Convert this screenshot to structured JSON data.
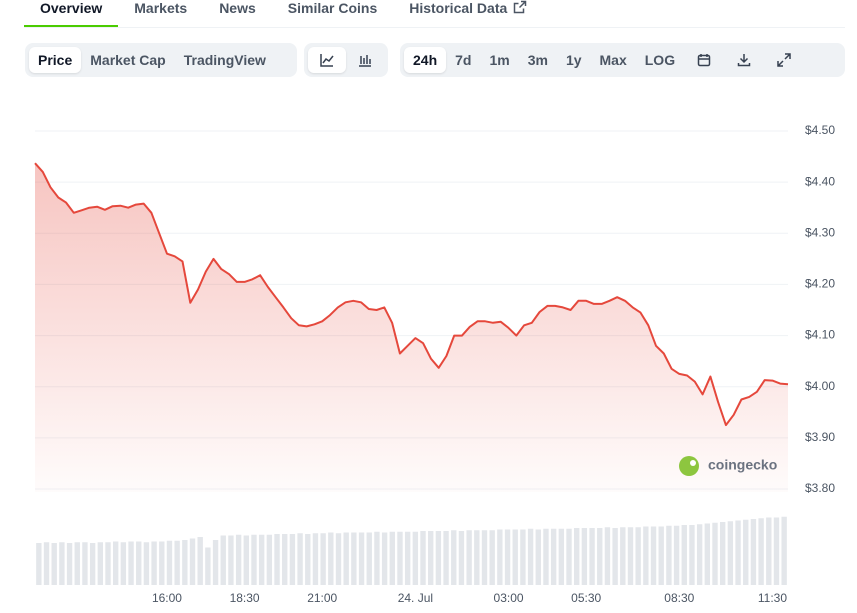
{
  "tabs": [
    "Overview",
    "Markets",
    "News",
    "Similar Coins",
    "Historical Data"
  ],
  "chart_views": [
    "Price",
    "Market Cap",
    "TradingView"
  ],
  "ranges": [
    "24h",
    "7d",
    "1m",
    "3m",
    "1y",
    "Max",
    "LOG"
  ],
  "watermark": "coingecko",
  "chart_data": [
    {
      "type": "line",
      "color": "#e5483c",
      "categories": [
        null,
        null,
        null,
        null,
        null,
        null,
        null,
        null,
        null,
        null,
        null,
        null,
        null,
        null,
        null,
        null,
        null,
        "16:00",
        null,
        null,
        null,
        null,
        null,
        null,
        null,
        null,
        null,
        "18:30",
        null,
        null,
        null,
        null,
        null,
        null,
        null,
        null,
        null,
        "21:00",
        null,
        null,
        null,
        null,
        null,
        null,
        null,
        null,
        null,
        null,
        null,
        "24. Jul",
        null,
        null,
        null,
        null,
        null,
        null,
        null,
        null,
        null,
        null,
        null,
        "03:00",
        null,
        null,
        null,
        null,
        null,
        null,
        null,
        null,
        null,
        "05:30",
        null,
        null,
        null,
        null,
        null,
        null,
        null,
        null,
        null,
        null,
        null,
        "08:30",
        null,
        null,
        null,
        null,
        null,
        null,
        null,
        null,
        null,
        null,
        null,
        "11:30",
        null,
        null
      ],
      "values": [
        4.437,
        4.42,
        4.39,
        4.37,
        4.36,
        4.34,
        4.345,
        4.35,
        4.352,
        4.346,
        4.353,
        4.354,
        4.35,
        4.356,
        4.358,
        4.34,
        4.3,
        4.26,
        4.255,
        4.245,
        4.164,
        4.19,
        4.225,
        4.25,
        4.23,
        4.22,
        4.205,
        4.205,
        4.21,
        4.218,
        4.195,
        4.175,
        4.155,
        4.134,
        4.12,
        4.118,
        4.122,
        4.128,
        4.14,
        4.155,
        4.165,
        4.168,
        4.165,
        4.152,
        4.15,
        4.155,
        4.125,
        4.065,
        4.08,
        4.095,
        4.085,
        4.055,
        4.037,
        4.06,
        4.1,
        4.1,
        4.117,
        4.128,
        4.128,
        4.125,
        4.127,
        4.115,
        4.1,
        4.12,
        4.125,
        4.146,
        4.158,
        4.158,
        4.155,
        4.15,
        4.168,
        4.168,
        4.162,
        4.162,
        4.168,
        4.175,
        4.168,
        4.155,
        4.145,
        4.12,
        4.08,
        4.065,
        4.035,
        4.025,
        4.022,
        4.01,
        3.985,
        4.02,
        3.97,
        3.925,
        3.945,
        3.975,
        3.98,
        3.99,
        4.013,
        4.012,
        4.006,
        4.005
      ],
      "ylim": [
        3.8,
        4.5
      ],
      "yticks": [
        {
          "value": 4.5,
          "label": "$4.50"
        },
        {
          "value": 4.4,
          "label": "$4.40"
        },
        {
          "value": 4.3,
          "label": "$4.30"
        },
        {
          "value": 4.2,
          "label": "$4.20"
        },
        {
          "value": 4.1,
          "label": "$4.10"
        },
        {
          "value": 4.0,
          "label": "$4.00"
        },
        {
          "value": 3.9,
          "label": "$3.90"
        },
        {
          "value": 3.8,
          "label": "$3.80"
        }
      ],
      "grid": true
    },
    {
      "type": "bar",
      "color": "#e3e6ea",
      "values": [
        0.56,
        0.57,
        0.56,
        0.57,
        0.56,
        0.57,
        0.57,
        0.56,
        0.57,
        0.57,
        0.58,
        0.57,
        0.58,
        0.58,
        0.57,
        0.58,
        0.58,
        0.59,
        0.59,
        0.6,
        0.62,
        0.64,
        0.5,
        0.6,
        0.66,
        0.66,
        0.67,
        0.66,
        0.67,
        0.67,
        0.67,
        0.68,
        0.68,
        0.68,
        0.69,
        0.68,
        0.69,
        0.69,
        0.7,
        0.69,
        0.7,
        0.7,
        0.7,
        0.7,
        0.71,
        0.7,
        0.71,
        0.71,
        0.71,
        0.71,
        0.72,
        0.72,
        0.72,
        0.72,
        0.73,
        0.72,
        0.73,
        0.73,
        0.73,
        0.73,
        0.74,
        0.74,
        0.74,
        0.74,
        0.75,
        0.74,
        0.75,
        0.75,
        0.75,
        0.75,
        0.76,
        0.76,
        0.76,
        0.76,
        0.77,
        0.76,
        0.77,
        0.77,
        0.77,
        0.78,
        0.78,
        0.78,
        0.79,
        0.79,
        0.8,
        0.8,
        0.81,
        0.82,
        0.83,
        0.84,
        0.85,
        0.86,
        0.87,
        0.88,
        0.89,
        0.9,
        0.9,
        0.91
      ]
    }
  ]
}
